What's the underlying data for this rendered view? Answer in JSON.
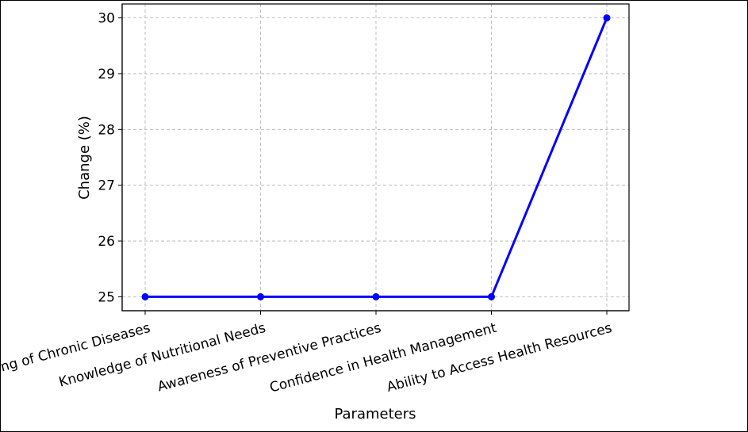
{
  "chart_data": {
    "type": "line",
    "title": "",
    "xlabel": "Parameters",
    "ylabel": "Change (%)",
    "categories": [
      "Understanding of Chronic Diseases",
      "Knowledge of Nutritional Needs",
      "Awareness of Preventive Practices",
      "Confidence in Health Management",
      "Ability to Access Health Resources"
    ],
    "series": [
      {
        "values": [
          25,
          25,
          25,
          25,
          30
        ]
      }
    ],
    "ylim": [
      24.75,
      30.25
    ],
    "yticks": [
      "25",
      "26",
      "27",
      "28",
      "29",
      "30"
    ],
    "grid": true,
    "line_color": "#0000ff",
    "marker_color": "#0000ff"
  }
}
